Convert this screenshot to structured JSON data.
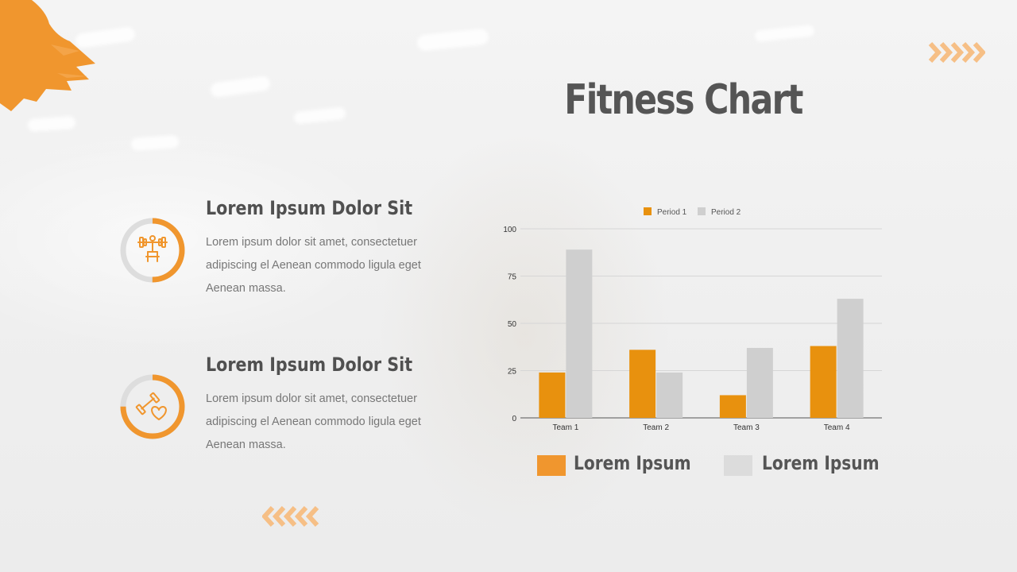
{
  "slide": {
    "title": "Fitness Chart",
    "accent_color": "#f0962e",
    "items": [
      {
        "heading": "Lorem Ipsum Dolor Sit",
        "body": "Lorem ipsum dolor sit amet, consectetuer adipiscing el Aenean commodo ligula eget Aenean massa.",
        "icon": "weightlifting-icon",
        "ring_fill": 0.5
      },
      {
        "heading": "Lorem Ipsum Dolor Sit",
        "body": "Lorem ipsum dolor sit amet, consectetuer adipiscing el Aenean commodo ligula eget Aenean massa.",
        "icon": "dumbbell-heart-icon",
        "ring_fill": 0.75
      }
    ],
    "bottom_legend": [
      {
        "label": "Lorem Ipsum",
        "color": "#f0962e"
      },
      {
        "label": "Lorem Ipsum",
        "color": "#dcdcdc"
      }
    ]
  },
  "chart_data": {
    "type": "bar",
    "categories": [
      "Team 1",
      "Team 2",
      "Team 3",
      "Team 4"
    ],
    "series": [
      {
        "name": "Period 1",
        "values": [
          24,
          36,
          12,
          38
        ],
        "color": "#e8910e"
      },
      {
        "name": "Period 2",
        "values": [
          89,
          24,
          37,
          63
        ],
        "color": "#cfcfcf"
      }
    ],
    "ylim": [
      0,
      100
    ],
    "yticks": [
      0,
      25,
      50,
      75,
      100
    ],
    "grid": true,
    "legend_position": "top-center"
  }
}
